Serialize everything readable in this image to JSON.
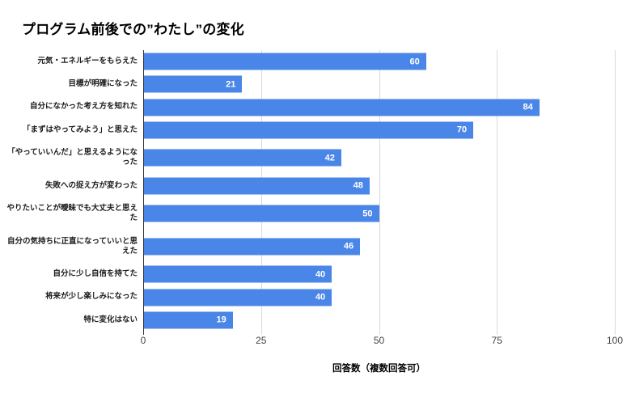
{
  "title": "プログラム前後での”わたし”の変化",
  "chart_data": {
    "type": "bar",
    "orientation": "horizontal",
    "title": "プログラム前後での”わたし”の変化",
    "categories": [
      "元気・エネルギーをもらえた",
      "目標が明確になった",
      "自分になかった考え方を知れた",
      "「まずはやってみよう」と思えた",
      "「やっていいんだ」と思えるようになった",
      "失敗への捉え方が変わった",
      "やりたいことが曖昧でも大丈夫と思えた",
      "自分の気持ちに正直になっていいと思えた",
      "自分に少し自信を持てた",
      "将来が少し楽しみになった",
      "特に変化はない"
    ],
    "values": [
      60,
      21,
      84,
      70,
      42,
      48,
      50,
      46,
      40,
      40,
      19
    ],
    "xlabel": "回答数（複数回答可）",
    "ylabel": "",
    "xlim": [
      0,
      100
    ],
    "x_ticks": [
      0,
      25,
      50,
      75,
      100
    ],
    "gridlines": true,
    "legend": "none",
    "bar_color": "#4A86E8",
    "value_label_color": "#ffffff",
    "gridline_color": "#d9d9d9",
    "axis_line_color": "#333333"
  }
}
